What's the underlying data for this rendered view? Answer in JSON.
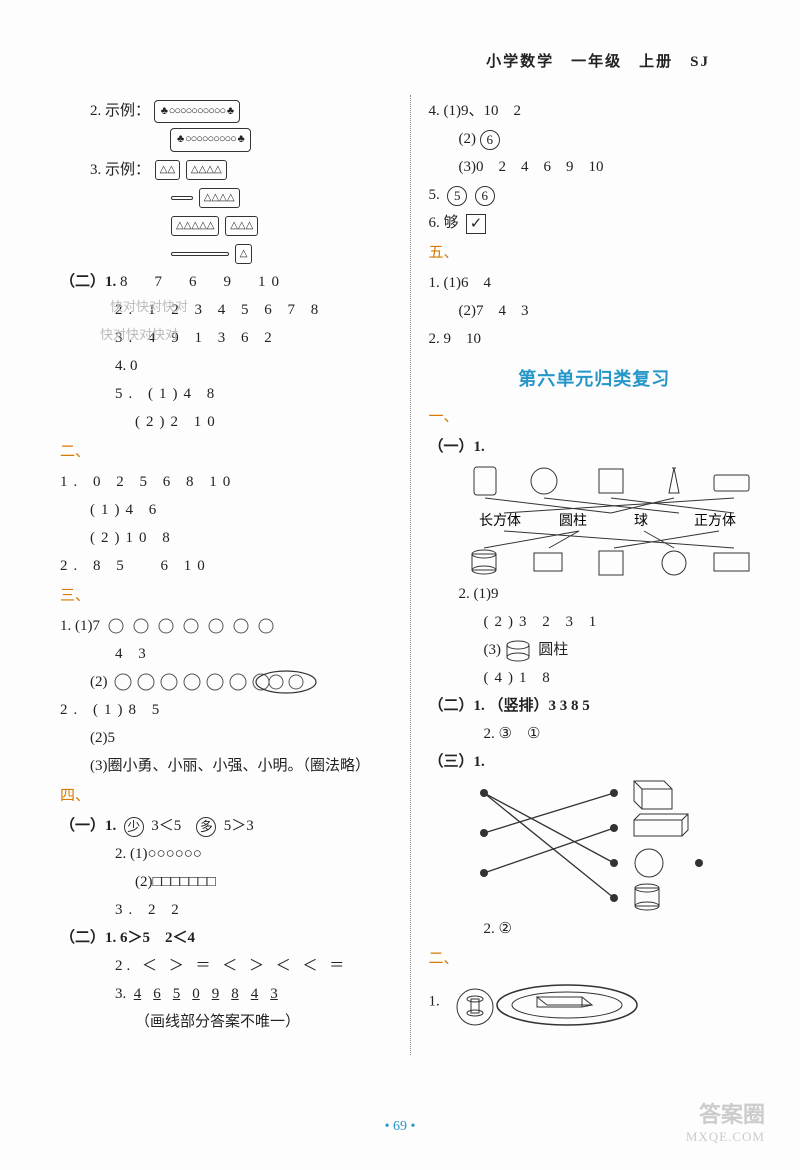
{
  "header": "小学数学　一年级　上册　SJ",
  "left": {
    "l2_prefix": "2. 示例：",
    "l2_box1": "♣ ○○○○○○○○○○ ♣",
    "l2_box2": "♣ ○○○○○○○○○ ♣",
    "l3_prefix": "3. 示例：",
    "tri1": "△△",
    "tri2": "△△△△",
    "tri3": "△△△△",
    "tri4": "△△△△△",
    "tri5": "△△△",
    "tri6": "△",
    "sec2": "（二）1.",
    "s2_1": "8　7　6　9　10",
    "s2_2": "2.  1  2  3  4  5  6  7  8",
    "s2_wm1": "快对快对快对",
    "s2_3": "3.  4  9  1  3  6  2",
    "s2_wm2": "快对快对快对",
    "s2_4": "4.  0",
    "s2_5": "5.  (1)4  8",
    "s2_5b": "(2)2  10",
    "m2": "二、",
    "m2_1": "1.  0  2  5  6  8  10",
    "m2_1a": "(1)4  6",
    "m2_1b": "(2)10   8",
    "m2_2": "2.  8  5　 6  10",
    "m3": "三、",
    "m3_1": "1.  (1)7",
    "m3_1b": "4  3",
    "m3_1c": "(2)",
    "m3_2": "2.  (1)8  5",
    "m3_2b": "(2)5",
    "m3_2c": "(3)圈小勇、小丽、小强、小明。（圈法略）",
    "m4": "四、",
    "m4_s1": "（一）1.",
    "m4_s1_a": "少",
    "m4_s1_b": "3＜5",
    "m4_s1_c": "多",
    "m4_s1_d": "5＞3",
    "m4_2a": "2.  (1)○○○○○○",
    "m4_2b": "(2)□□□□□□□",
    "m4_3": "3.  2  2",
    "m4_s2": "（二）1.  6＞5　2＜4",
    "m4_s2_2": "2.  ＜  ＞  ＝  ＜  ＞  ＜  ＜  ＝",
    "m4_s2_3": "3.",
    "m4_s2_3nums": [
      "4",
      "6",
      "5",
      "0",
      "9",
      "8",
      "4",
      "3"
    ],
    "m4_s2_3note": "（画线部分答案不唯一）"
  },
  "right": {
    "r4": "4.  (1)9、10　2",
    "r4_2a": "(2)",
    "r4_2b": "6",
    "r4_3": "(3)0　2　4　6　9　10",
    "r5": "5.",
    "r5_a": "5",
    "r5_b": "6",
    "r6": "6.  够",
    "r6_check": "✓",
    "m5": "五、",
    "m5_1": "1.  (1)6　4",
    "m5_1b": "(2)7　4　3",
    "m5_2": "2.  9　10",
    "unit_title": "第六单元归类复习",
    "m1": "一、",
    "s1_1": "（一）1.",
    "shapes_labels": [
      "长方体",
      "圆柱",
      "球",
      "正方体"
    ],
    "s1_2": "2.  (1)9",
    "s1_2b": "(2)3  2  3  1",
    "s1_2c_a": "(3)",
    "s1_2c_b": "圆柱",
    "s1_2d": "(4)1  8",
    "s2": "（二）1.  （竖排）3  3  8  5",
    "s2_2": "2.  ③　①",
    "s3": "（三）1.",
    "s3_2": "2.  ②",
    "m2r": "二、",
    "m2r_1": "1."
  },
  "footer": "• 69 •",
  "wm_big": "答案圈",
  "wm_small": "MXQE.COM",
  "colors": {
    "section": "#d67a00",
    "title": "#2696c9",
    "text": "#222"
  }
}
